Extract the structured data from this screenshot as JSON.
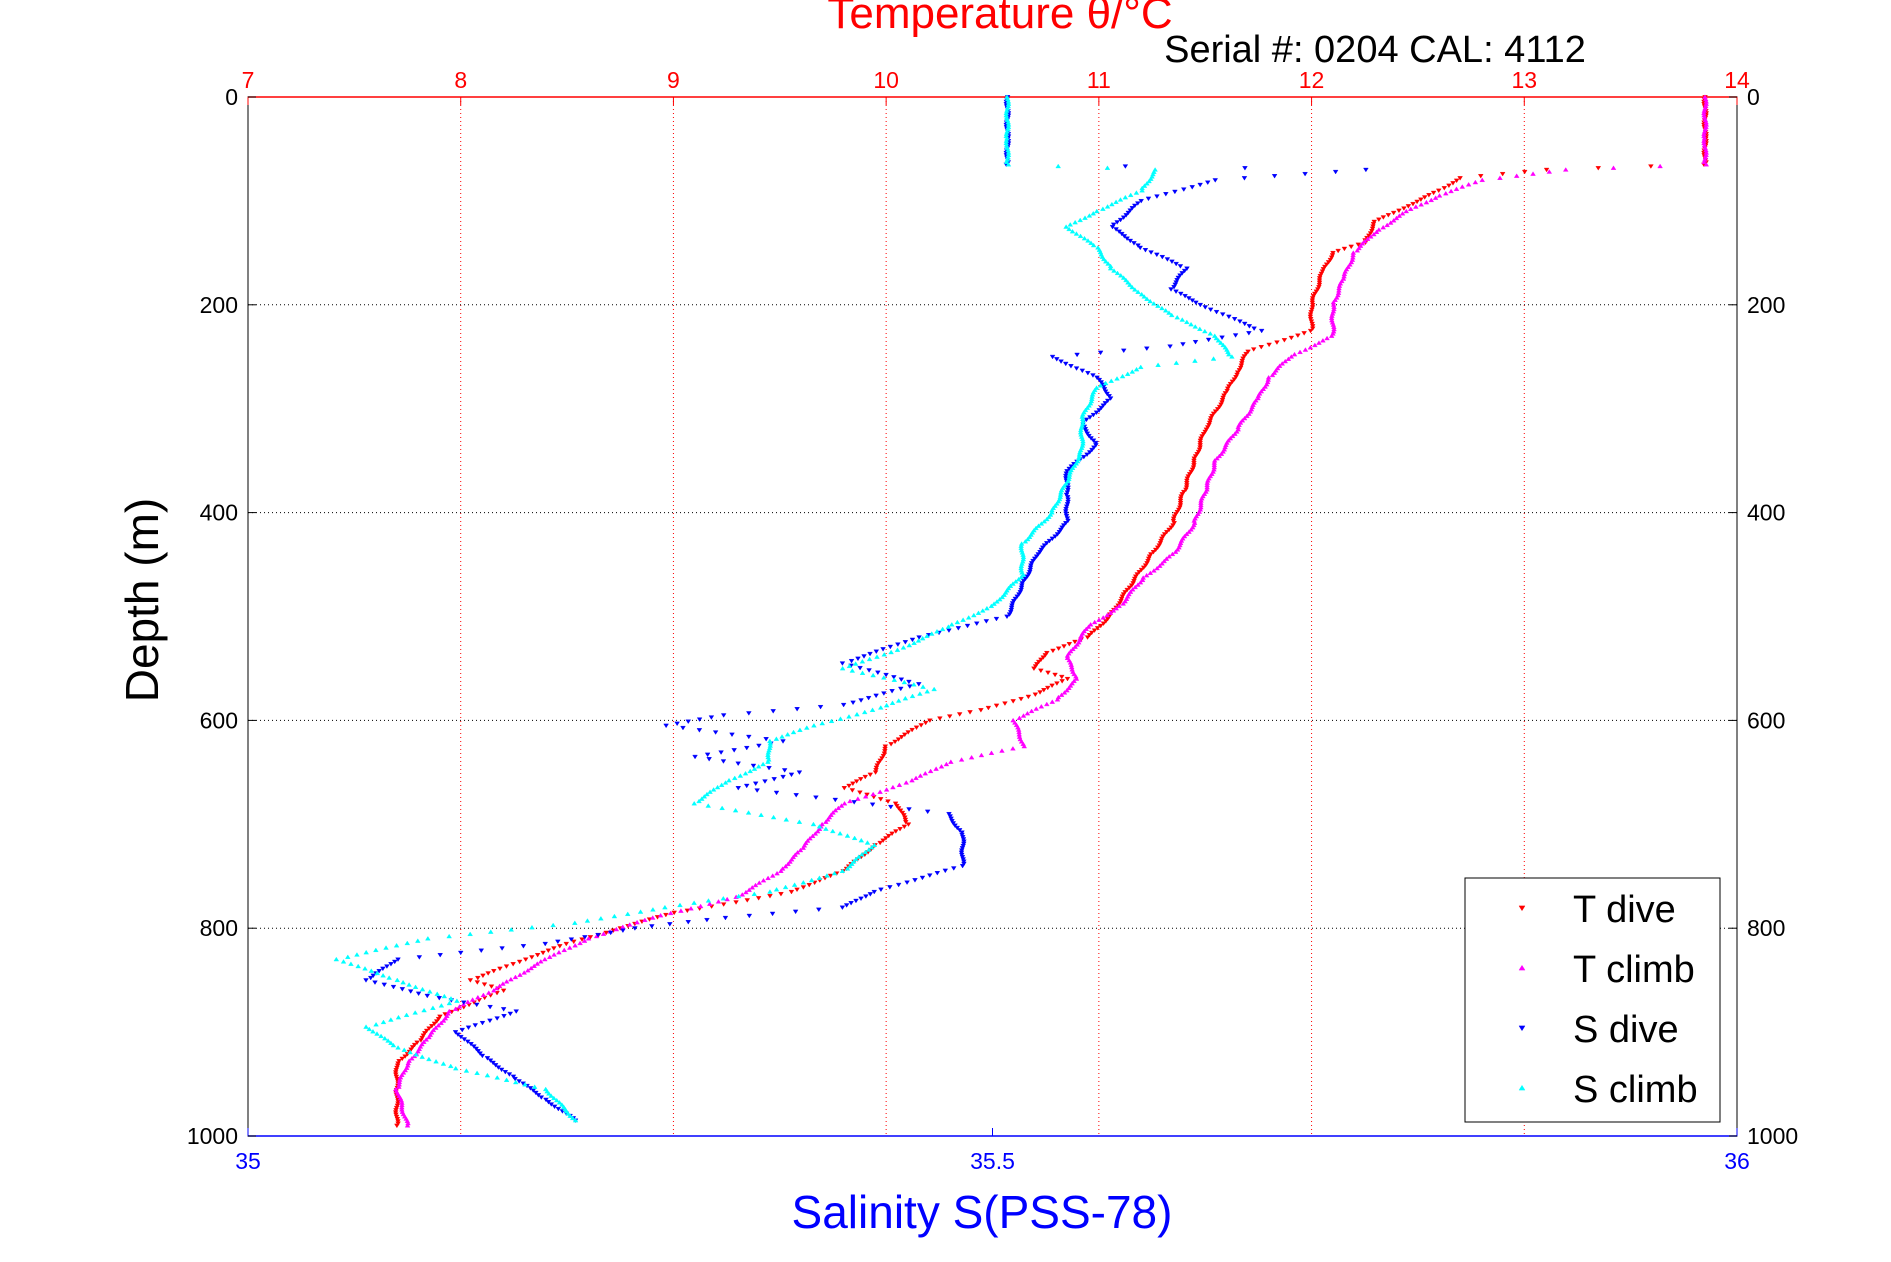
{
  "chart_data": {
    "type": "scatter",
    "top_title": "Temperature θ/°C",
    "subtitle": "Serial #: 0204  CAL: 4112",
    "ylabel": "Depth (m)",
    "xlabel": "Salinity S(PSS-78)",
    "temperature_axis": {
      "min": 7,
      "max": 14,
      "ticks": [
        7,
        8,
        9,
        10,
        11,
        12,
        13,
        14
      ],
      "color": "#ff0000"
    },
    "salinity_axis": {
      "min": 35,
      "max": 36,
      "ticks": [
        35,
        35.5,
        36
      ],
      "color": "#0000ff"
    },
    "depth_axis": {
      "min": 0,
      "max": 1000,
      "ticks": [
        0,
        200,
        400,
        600,
        800,
        1000
      ],
      "reversed": true
    },
    "legend_position": "bottom-right",
    "series": [
      {
        "name": "T dive",
        "axis": "temperature",
        "color": "#ff0000",
        "marker": "triangle-down",
        "points": [
          [
            13.85,
            0
          ],
          [
            13.85,
            40
          ],
          [
            13.85,
            65
          ],
          [
            13.1,
            70
          ],
          [
            12.7,
            78
          ],
          [
            12.6,
            90
          ],
          [
            12.45,
            105
          ],
          [
            12.3,
            120
          ],
          [
            12.25,
            140
          ],
          [
            12.1,
            150
          ],
          [
            12.05,
            170
          ],
          [
            12.0,
            200
          ],
          [
            12.0,
            225
          ],
          [
            11.7,
            245
          ],
          [
            11.65,
            265
          ],
          [
            11.6,
            285
          ],
          [
            11.5,
            320
          ],
          [
            11.45,
            350
          ],
          [
            11.4,
            380
          ],
          [
            11.35,
            410
          ],
          [
            11.25,
            440
          ],
          [
            11.15,
            470
          ],
          [
            11.05,
            500
          ],
          [
            10.95,
            520
          ],
          [
            10.75,
            535
          ],
          [
            10.7,
            550
          ],
          [
            10.85,
            560
          ],
          [
            10.7,
            575
          ],
          [
            10.45,
            590
          ],
          [
            10.2,
            600
          ],
          [
            10.0,
            625
          ],
          [
            9.95,
            650
          ],
          [
            9.8,
            665
          ],
          [
            10.05,
            680
          ],
          [
            10.1,
            700
          ],
          [
            9.95,
            720
          ],
          [
            9.8,
            745
          ],
          [
            9.55,
            765
          ],
          [
            9.3,
            775
          ],
          [
            9.0,
            785
          ],
          [
            8.75,
            800
          ],
          [
            8.5,
            815
          ],
          [
            8.3,
            830
          ],
          [
            8.05,
            850
          ],
          [
            8.2,
            860
          ],
          [
            7.9,
            885
          ],
          [
            7.8,
            910
          ],
          [
            7.7,
            930
          ],
          [
            7.7,
            960
          ],
          [
            7.7,
            990
          ]
        ]
      },
      {
        "name": "T climb",
        "axis": "temperature",
        "color": "#ff00ff",
        "marker": "triangle-up",
        "points": [
          [
            13.85,
            0
          ],
          [
            13.85,
            40
          ],
          [
            13.85,
            65
          ],
          [
            13.2,
            70
          ],
          [
            12.8,
            80
          ],
          [
            12.6,
            95
          ],
          [
            12.45,
            110
          ],
          [
            12.3,
            130
          ],
          [
            12.2,
            150
          ],
          [
            12.15,
            175
          ],
          [
            12.1,
            200
          ],
          [
            12.1,
            230
          ],
          [
            11.9,
            250
          ],
          [
            11.8,
            270
          ],
          [
            11.75,
            290
          ],
          [
            11.65,
            320
          ],
          [
            11.55,
            350
          ],
          [
            11.5,
            380
          ],
          [
            11.45,
            410
          ],
          [
            11.35,
            440
          ],
          [
            11.2,
            465
          ],
          [
            11.1,
            490
          ],
          [
            10.95,
            510
          ],
          [
            10.85,
            540
          ],
          [
            10.9,
            560
          ],
          [
            10.8,
            580
          ],
          [
            10.6,
            600
          ],
          [
            10.65,
            625
          ],
          [
            10.3,
            640
          ],
          [
            10.1,
            660
          ],
          [
            9.8,
            680
          ],
          [
            9.7,
            700
          ],
          [
            9.6,
            725
          ],
          [
            9.5,
            745
          ],
          [
            9.3,
            770
          ],
          [
            8.9,
            790
          ],
          [
            8.6,
            810
          ],
          [
            8.4,
            830
          ],
          [
            8.15,
            860
          ],
          [
            7.95,
            880
          ],
          [
            7.85,
            905
          ],
          [
            7.75,
            930
          ],
          [
            7.7,
            955
          ],
          [
            7.75,
            990
          ]
        ]
      },
      {
        "name": "S dive",
        "axis": "salinity",
        "color": "#0000ff",
        "marker": "triangle-down",
        "points": [
          [
            35.51,
            0
          ],
          [
            35.51,
            40
          ],
          [
            35.51,
            65
          ],
          [
            35.75,
            70
          ],
          [
            35.65,
            80
          ],
          [
            35.6,
            100
          ],
          [
            35.58,
            125
          ],
          [
            35.6,
            145
          ],
          [
            35.63,
            165
          ],
          [
            35.62,
            185
          ],
          [
            35.64,
            200
          ],
          [
            35.68,
            225
          ],
          [
            35.62,
            240
          ],
          [
            35.54,
            250
          ],
          [
            35.57,
            270
          ],
          [
            35.58,
            290
          ],
          [
            35.56,
            315
          ],
          [
            35.57,
            335
          ],
          [
            35.55,
            360
          ],
          [
            35.55,
            385
          ],
          [
            35.55,
            410
          ],
          [
            35.53,
            440
          ],
          [
            35.52,
            470
          ],
          [
            35.51,
            500
          ],
          [
            35.45,
            520
          ],
          [
            35.4,
            545
          ],
          [
            35.45,
            565
          ],
          [
            35.4,
            585
          ],
          [
            35.32,
            595
          ],
          [
            35.28,
            605
          ],
          [
            35.36,
            620
          ],
          [
            35.3,
            635
          ],
          [
            35.37,
            650
          ],
          [
            35.33,
            665
          ],
          [
            35.47,
            690
          ],
          [
            35.48,
            710
          ],
          [
            35.48,
            740
          ],
          [
            35.42,
            765
          ],
          [
            35.4,
            780
          ],
          [
            35.32,
            790
          ],
          [
            35.26,
            800
          ],
          [
            35.2,
            815
          ],
          [
            35.1,
            830
          ],
          [
            35.08,
            850
          ],
          [
            35.12,
            865
          ],
          [
            35.18,
            880
          ],
          [
            35.14,
            900
          ],
          [
            35.16,
            925
          ],
          [
            35.18,
            945
          ],
          [
            35.2,
            965
          ],
          [
            35.22,
            985
          ]
        ]
      },
      {
        "name": "S climb",
        "axis": "salinity",
        "color": "#00ffff",
        "marker": "triangle-up",
        "points": [
          [
            35.51,
            0
          ],
          [
            35.51,
            40
          ],
          [
            35.51,
            65
          ],
          [
            35.61,
            70
          ],
          [
            35.6,
            90
          ],
          [
            35.57,
            110
          ],
          [
            35.55,
            125
          ],
          [
            35.57,
            145
          ],
          [
            35.58,
            165
          ],
          [
            35.6,
            190
          ],
          [
            35.62,
            210
          ],
          [
            35.65,
            230
          ],
          [
            35.66,
            250
          ],
          [
            35.6,
            260
          ],
          [
            35.57,
            280
          ],
          [
            35.56,
            310
          ],
          [
            35.56,
            340
          ],
          [
            35.55,
            370
          ],
          [
            35.54,
            400
          ],
          [
            35.52,
            430
          ],
          [
            35.52,
            460
          ],
          [
            35.5,
            490
          ],
          [
            35.47,
            510
          ],
          [
            35.44,
            530
          ],
          [
            35.4,
            550
          ],
          [
            35.46,
            570
          ],
          [
            35.42,
            590
          ],
          [
            35.38,
            605
          ],
          [
            35.35,
            620
          ],
          [
            35.35,
            640
          ],
          [
            35.32,
            660
          ],
          [
            35.3,
            680
          ],
          [
            35.38,
            700
          ],
          [
            35.42,
            720
          ],
          [
            35.4,
            745
          ],
          [
            35.35,
            765
          ],
          [
            35.28,
            780
          ],
          [
            35.22,
            795
          ],
          [
            35.12,
            810
          ],
          [
            35.06,
            830
          ],
          [
            35.1,
            850
          ],
          [
            35.14,
            870
          ],
          [
            35.08,
            895
          ],
          [
            35.1,
            915
          ],
          [
            35.14,
            935
          ],
          [
            35.2,
            955
          ],
          [
            35.22,
            985
          ]
        ]
      }
    ]
  }
}
